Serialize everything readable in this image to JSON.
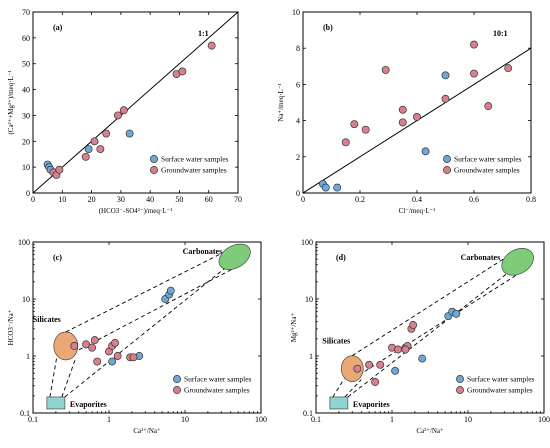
{
  "colors": {
    "surface": "#6fa8d6",
    "ground": "#d9808f",
    "carbonates": "#7ecb7a",
    "silicates": "#eaa877",
    "evaporites": "#8fd4d0"
  },
  "chart_data": [
    {
      "id": "a",
      "type": "scatter",
      "panel_label": "(a)",
      "ratio_label": "1:1",
      "xlabel": "(HCO3⁻-SO4²⁻)/meq·L⁻¹",
      "ylabel": "(Ca²⁺+Mg²⁺)/meq·L⁻¹",
      "xlim": [
        0,
        70
      ],
      "ylim": [
        0,
        70
      ],
      "xticks": [
        0,
        10,
        20,
        30,
        40,
        50,
        60,
        70
      ],
      "yticks": [
        0,
        10,
        20,
        30,
        40,
        50,
        60,
        70
      ],
      "scale": "linear",
      "legend_position": "bottom-right",
      "reference_line": {
        "slope": 1,
        "intercept": 0
      },
      "series": [
        {
          "name": "Surface water samples",
          "points": [
            [
              5,
              11
            ],
            [
              5.5,
              10
            ],
            [
              6,
              9
            ],
            [
              19,
              17
            ],
            [
              33,
              23
            ]
          ]
        },
        {
          "name": "Groundwater samples",
          "points": [
            [
              7,
              8
            ],
            [
              8,
              7
            ],
            [
              9,
              9
            ],
            [
              18,
              14
            ],
            [
              21,
              20
            ],
            [
              23,
              17
            ],
            [
              25,
              23
            ],
            [
              29,
              30
            ],
            [
              31,
              32
            ],
            [
              49,
              46
            ],
            [
              51,
              47
            ],
            [
              61,
              57
            ]
          ]
        }
      ]
    },
    {
      "id": "b",
      "type": "scatter",
      "panel_label": "(b)",
      "ratio_label": "10:1",
      "xlabel": "Cl⁻/meq·L⁻¹",
      "ylabel": "Na⁺/meq·L⁻¹",
      "xlim": [
        0,
        0.8
      ],
      "ylim": [
        0,
        10
      ],
      "xticks": [
        0,
        0.2,
        0.4,
        0.6,
        0.8
      ],
      "xticklabels": [
        "0",
        "0.2",
        "0.4",
        "0.6",
        "0.8"
      ],
      "yticks": [
        0,
        2,
        4,
        6,
        8,
        10
      ],
      "scale": "linear",
      "legend_position": "bottom-right",
      "reference_line": {
        "slope": 10,
        "intercept": 0
      },
      "series": [
        {
          "name": "Surface water samples",
          "points": [
            [
              0.07,
              0.5
            ],
            [
              0.08,
              0.3
            ],
            [
              0.12,
              0.3
            ],
            [
              0.43,
              2.3
            ],
            [
              0.5,
              6.5
            ]
          ]
        },
        {
          "name": "Groundwater samples",
          "points": [
            [
              0.15,
              2.8
            ],
            [
              0.18,
              3.8
            ],
            [
              0.22,
              3.5
            ],
            [
              0.29,
              6.8
            ],
            [
              0.35,
              4.6
            ],
            [
              0.35,
              3.9
            ],
            [
              0.4,
              4.2
            ],
            [
              0.5,
              5.2
            ],
            [
              0.6,
              6.6
            ],
            [
              0.6,
              8.2
            ],
            [
              0.65,
              4.8
            ],
            [
              0.72,
              6.9
            ]
          ]
        }
      ]
    },
    {
      "id": "c",
      "type": "scatter",
      "panel_label": "(c)",
      "xlabel": "Ca²⁺/Na⁺",
      "ylabel": "HCO3⁻/Na⁺",
      "xlim": [
        0.1,
        100
      ],
      "ylim": [
        0.1,
        100
      ],
      "xticks": [
        0.1,
        1,
        10,
        100
      ],
      "yticks": [
        0.1,
        1,
        10,
        100
      ],
      "tick_labels": [
        "0.1",
        "1",
        "10",
        "100"
      ],
      "scale": "log",
      "legend_position": "bottom-right",
      "regions": [
        {
          "name": "Carbonates",
          "shape": "ellipse",
          "center": [
            45,
            55
          ],
          "color_key": "carbonates"
        },
        {
          "name": "Silicates",
          "shape": "ellipse",
          "center": [
            0.27,
            1.5
          ],
          "color_key": "silicates"
        },
        {
          "name": "Evaporites",
          "shape": "rect",
          "center": [
            0.2,
            0.15
          ],
          "color_key": "evaporites"
        }
      ],
      "series": [
        {
          "name": "Surface water samples",
          "points": [
            [
              5.5,
              10
            ],
            [
              6.2,
              12
            ],
            [
              6.5,
              14
            ],
            [
              2.5,
              1.0
            ],
            [
              1.1,
              0.8
            ]
          ]
        },
        {
          "name": "Groundwater samples",
          "points": [
            [
              0.35,
              1.5
            ],
            [
              0.5,
              1.6
            ],
            [
              0.6,
              1.4
            ],
            [
              0.65,
              1.9
            ],
            [
              0.7,
              0.8
            ],
            [
              1.0,
              1.2
            ],
            [
              1.1,
              1.5
            ],
            [
              1.2,
              1.7
            ],
            [
              1.3,
              1.0
            ],
            [
              1.9,
              0.95
            ],
            [
              2.1,
              0.95
            ]
          ]
        }
      ]
    },
    {
      "id": "d",
      "type": "scatter",
      "panel_label": "(d)",
      "xlabel": "Ca²⁺/Na⁺",
      "ylabel": "Mg²⁺/Na⁺",
      "xlim": [
        0.1,
        100
      ],
      "ylim": [
        0.1,
        100
      ],
      "xticks": [
        0.1,
        1,
        10,
        100
      ],
      "yticks": [
        0.1,
        1,
        10,
        100
      ],
      "tick_labels": [
        "0.1",
        "1",
        "10",
        "100"
      ],
      "scale": "log",
      "legend_position": "bottom-right",
      "regions": [
        {
          "name": "Carbonates",
          "shape": "ellipse",
          "center": [
            45,
            45
          ],
          "color_key": "carbonates"
        },
        {
          "name": "Silicates",
          "shape": "ellipse",
          "center": [
            0.3,
            0.6
          ],
          "color_key": "silicates"
        },
        {
          "name": "Evaporites",
          "shape": "rect",
          "center": [
            0.2,
            0.15
          ],
          "color_key": "evaporites"
        }
      ],
      "series": [
        {
          "name": "Surface water samples",
          "points": [
            [
              5.5,
              5
            ],
            [
              6.2,
              6
            ],
            [
              7,
              5.5
            ],
            [
              2.5,
              0.9
            ],
            [
              1.1,
              0.55
            ]
          ]
        },
        {
          "name": "Groundwater samples",
          "points": [
            [
              0.35,
              0.6
            ],
            [
              0.5,
              0.7
            ],
            [
              0.6,
              0.35
            ],
            [
              0.7,
              0.7
            ],
            [
              1.0,
              1.4
            ],
            [
              1.2,
              1.3
            ],
            [
              1.5,
              1.4
            ],
            [
              1.6,
              1.5
            ],
            [
              1.8,
              3
            ],
            [
              1.9,
              3.5
            ],
            [
              1.5,
              1.3
            ]
          ]
        }
      ]
    }
  ]
}
